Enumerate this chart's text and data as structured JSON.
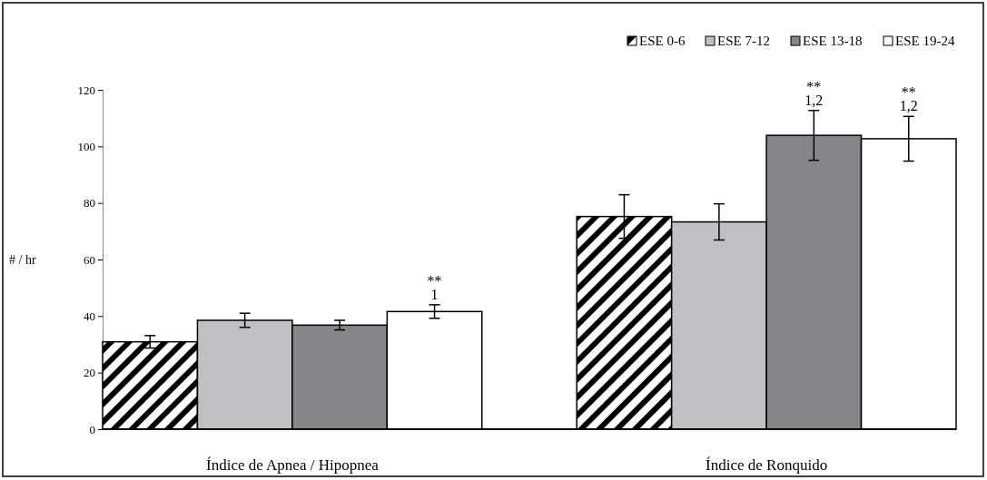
{
  "chart_data": {
    "type": "bar",
    "ylabel": "# / hr",
    "categories": [
      "Índice de Apnea / Hipopnea",
      "Índice de Ronquido"
    ],
    "series": [
      {
        "name": "ESE 0-6",
        "color": "#000000",
        "values": [
          30.9,
          75.2
        ],
        "errors": [
          2.2,
          7.7
        ]
      },
      {
        "name": "ESE 7-12",
        "color": "#c0bfc3",
        "values": [
          38.5,
          73.3
        ],
        "errors": [
          2.5,
          6.4
        ]
      },
      {
        "name": "ESE 13-18",
        "color": "#868589",
        "values": [
          36.8,
          103.9
        ],
        "errors": [
          1.7,
          8.8
        ]
      },
      {
        "name": "ESE 19-24",
        "color": "#ffffff",
        "values": [
          41.6,
          102.7
        ],
        "errors": [
          2.4,
          7.9
        ]
      }
    ],
    "ylim": [
      0,
      120
    ],
    "yticks": [
      0,
      20,
      40,
      60,
      80,
      100,
      120
    ],
    "grid": false,
    "legend": "top right",
    "annotations": [
      "**\n1",
      "**\n1,2",
      "**\n1,2"
    ]
  }
}
